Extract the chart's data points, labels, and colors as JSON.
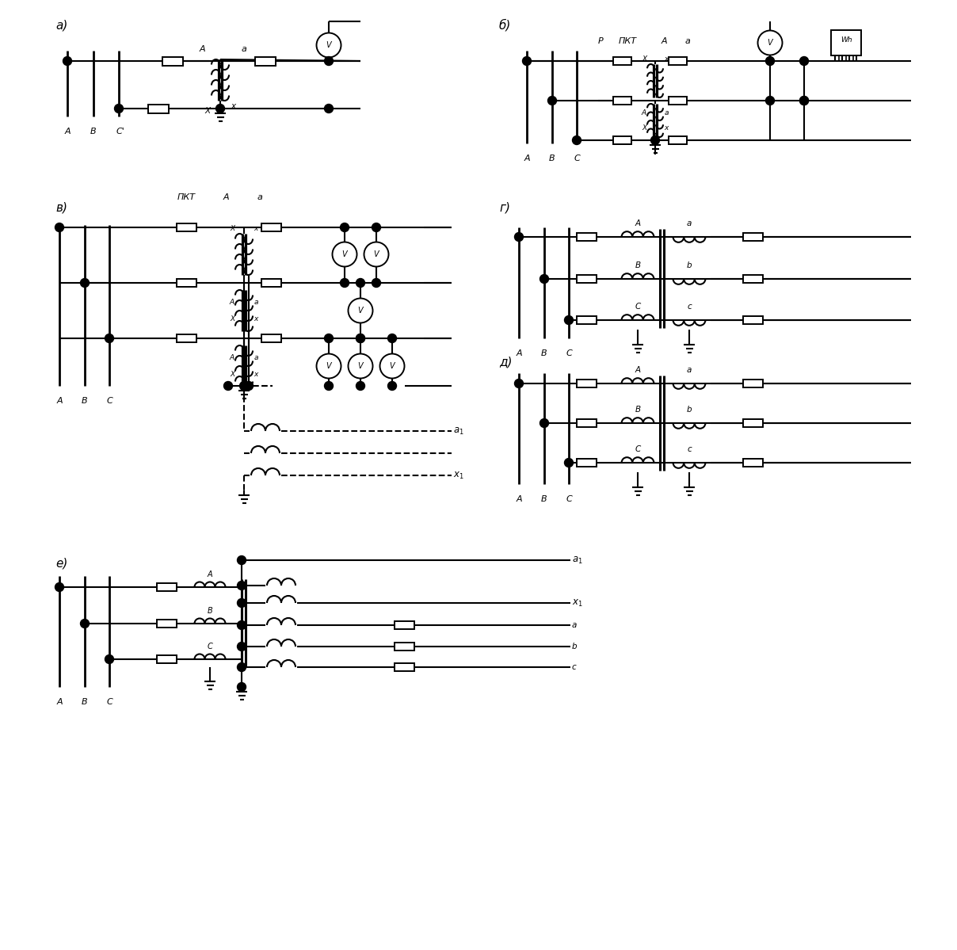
{
  "bg": "#ffffff",
  "lc": "#000000",
  "lw": 1.5,
  "figsize": [
    12.08,
    11.99
  ],
  "dpi": 100,
  "sec_labels": {
    "a": "а)",
    "b": "б)",
    "v": "в)",
    "g": "г)",
    "d": "д)",
    "e": "е)"
  }
}
